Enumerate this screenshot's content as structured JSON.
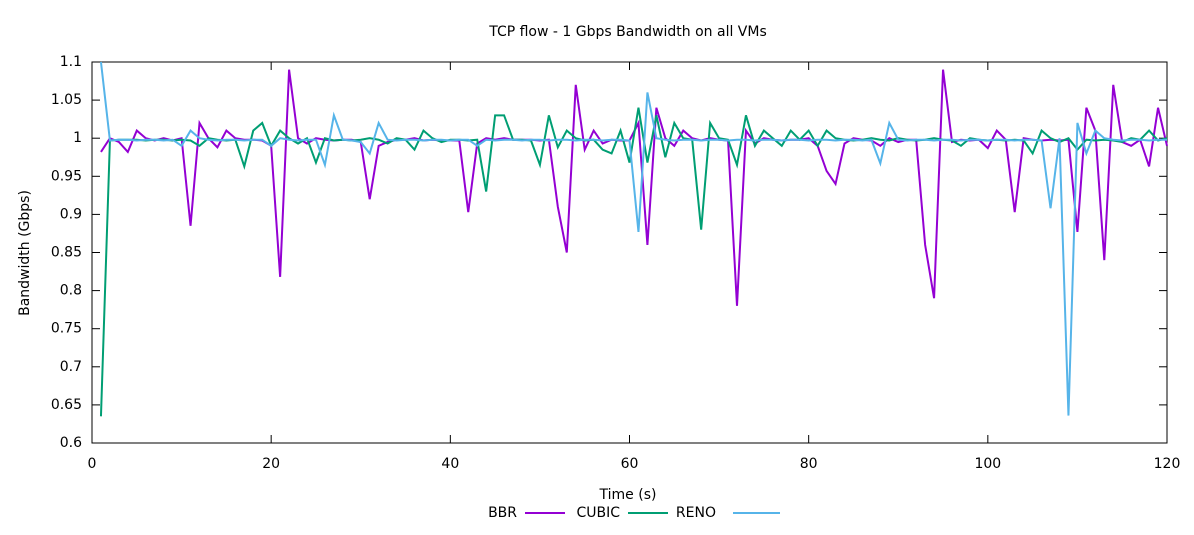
{
  "chart_data": {
    "type": "line",
    "title": "TCP flow - 1 Gbps Bandwidth on all VMs",
    "x_label": "Time (s)",
    "y_label": "Bandwidth (Gbps)",
    "x": [
      1,
      2,
      3,
      4,
      5,
      6,
      7,
      8,
      9,
      10,
      11,
      12,
      13,
      14,
      15,
      16,
      17,
      18,
      19,
      20,
      21,
      22,
      23,
      24,
      25,
      26,
      27,
      28,
      29,
      30,
      31,
      32,
      33,
      34,
      35,
      36,
      37,
      38,
      39,
      40,
      41,
      42,
      43,
      44,
      45,
      46,
      47,
      48,
      49,
      50,
      51,
      52,
      53,
      54,
      55,
      56,
      57,
      58,
      59,
      60,
      61,
      62,
      63,
      64,
      65,
      66,
      67,
      68,
      69,
      70,
      71,
      72,
      73,
      74,
      75,
      76,
      77,
      78,
      79,
      80,
      81,
      82,
      83,
      84,
      85,
      86,
      87,
      88,
      89,
      90,
      91,
      92,
      93,
      94,
      95,
      96,
      97,
      98,
      99,
      100,
      101,
      102,
      103,
      104,
      105,
      106,
      107,
      108,
      109,
      110,
      111,
      112,
      113,
      114,
      115,
      116,
      117,
      118,
      119,
      120
    ],
    "series": [
      {
        "name": "BBR",
        "color": "#9400d3",
        "values": [
          0.982,
          1.0,
          0.995,
          0.982,
          1.01,
          1.0,
          0.997,
          1.0,
          0.997,
          1.0,
          0.885,
          1.02,
          1.0,
          0.988,
          1.01,
          1.0,
          0.998,
          0.998,
          0.997,
          0.99,
          0.818,
          1.09,
          1.0,
          0.993,
          1.0,
          0.998,
          0.997,
          0.998,
          0.998,
          0.995,
          0.92,
          0.99,
          0.995,
          0.998,
          0.998,
          1.0,
          0.997,
          0.998,
          0.997,
          0.997,
          0.997,
          0.903,
          0.993,
          1.0,
          0.998,
          1.0,
          0.998,
          0.998,
          0.998,
          0.997,
          0.998,
          0.91,
          0.85,
          1.07,
          0.985,
          1.01,
          0.993,
          0.998,
          0.997,
          0.997,
          1.02,
          0.86,
          1.04,
          1.0,
          0.99,
          1.01,
          1.0,
          0.997,
          1.0,
          0.998,
          0.997,
          0.78,
          1.01,
          0.993,
          1.0,
          0.998,
          0.997,
          0.998,
          0.998,
          1.0,
          0.99,
          0.957,
          0.94,
          0.993,
          1.0,
          0.998,
          0.997,
          0.99,
          1.0,
          0.995,
          0.998,
          0.998,
          0.86,
          0.79,
          1.09,
          0.995,
          0.998,
          0.997,
          0.998,
          0.987,
          1.01,
          0.998,
          0.903,
          1.0,
          0.998,
          0.997,
          0.998,
          0.997,
          0.998,
          0.877,
          1.04,
          1.01,
          0.84,
          1.07,
          0.995,
          0.99,
          0.998,
          0.963,
          1.04,
          0.99
        ]
      },
      {
        "name": "CUBIC",
        "color": "#009e73",
        "values": [
          0.635,
          0.997,
          0.998,
          0.998,
          0.998,
          0.997,
          0.998,
          0.998,
          0.997,
          0.998,
          0.997,
          0.99,
          1.0,
          0.998,
          0.997,
          0.998,
          0.963,
          1.01,
          1.02,
          0.99,
          1.01,
          1.0,
          0.993,
          1.0,
          0.968,
          1.0,
          0.997,
          0.998,
          0.997,
          0.998,
          1.0,
          0.998,
          0.993,
          1.0,
          0.998,
          0.985,
          1.01,
          1.0,
          0.995,
          0.998,
          0.998,
          0.997,
          0.998,
          0.93,
          1.03,
          1.03,
          0.998,
          0.998,
          0.997,
          0.965,
          1.03,
          0.988,
          1.01,
          1.0,
          0.997,
          0.998,
          0.985,
          0.98,
          1.01,
          0.968,
          1.04,
          0.968,
          1.03,
          0.975,
          1.02,
          1.0,
          0.998,
          0.88,
          1.02,
          1.0,
          0.998,
          0.965,
          1.03,
          0.99,
          1.01,
          1.0,
          0.99,
          1.01,
          0.998,
          1.01,
          0.99,
          1.01,
          1.0,
          0.998,
          0.997,
          0.998,
          1.0,
          0.998,
          0.997,
          1.0,
          0.998,
          0.997,
          0.998,
          1.0,
          0.998,
          0.997,
          0.99,
          1.0,
          0.998,
          0.997,
          0.998,
          0.997,
          0.998,
          0.997,
          0.98,
          1.01,
          1.0,
          0.995,
          1.0,
          0.985,
          0.998,
          0.997,
          0.998,
          0.997,
          0.995,
          1.0,
          0.998,
          1.01,
          0.997,
          1.0
        ]
      },
      {
        "name": "RENO",
        "color": "#56b4e9",
        "values": [
          1.1,
          0.997,
          0.998,
          0.998,
          0.997,
          0.998,
          0.998,
          0.997,
          0.998,
          0.99,
          1.01,
          1.0,
          0.998,
          0.997,
          0.998,
          0.998,
          0.997,
          0.998,
          0.998,
          0.99,
          1.0,
          0.998,
          0.997,
          0.998,
          0.998,
          0.965,
          1.03,
          0.998,
          0.997,
          0.995,
          0.98,
          1.02,
          0.998,
          0.997,
          0.998,
          0.998,
          0.997,
          0.998,
          0.998,
          0.997,
          0.998,
          0.998,
          0.99,
          0.998,
          0.997,
          0.998,
          0.998,
          0.997,
          0.998,
          0.998,
          0.997,
          0.998,
          0.998,
          0.997,
          0.998,
          0.998,
          0.997,
          0.998,
          0.998,
          0.997,
          0.877,
          1.06,
          1.0,
          0.998,
          0.997,
          0.998,
          0.998,
          0.997,
          0.998,
          0.998,
          0.997,
          0.998,
          0.998,
          0.997,
          0.998,
          0.998,
          0.997,
          0.998,
          0.998,
          0.997,
          0.998,
          0.998,
          0.997,
          0.998,
          0.998,
          0.997,
          0.998,
          0.967,
          1.02,
          0.998,
          0.997,
          0.998,
          0.998,
          0.997,
          0.998,
          0.998,
          0.997,
          0.998,
          0.998,
          0.997,
          0.998,
          0.998,
          0.997,
          0.998,
          0.998,
          0.997,
          0.908,
          1.0,
          0.636,
          1.02,
          0.98,
          1.01,
          1.0,
          0.998,
          0.997,
          0.998,
          0.998,
          0.997,
          0.998,
          0.998
        ]
      }
    ],
    "xlim": [
      0,
      120
    ],
    "xticks": [
      0,
      20,
      40,
      60,
      80,
      100,
      120
    ],
    "ylim": [
      0.6,
      1.1
    ],
    "yticks": [
      0.6,
      0.65,
      0.7,
      0.75,
      0.8,
      0.85,
      0.9,
      0.95,
      1,
      1.05,
      1.1
    ],
    "grid": false,
    "legend_position": "bottom"
  }
}
